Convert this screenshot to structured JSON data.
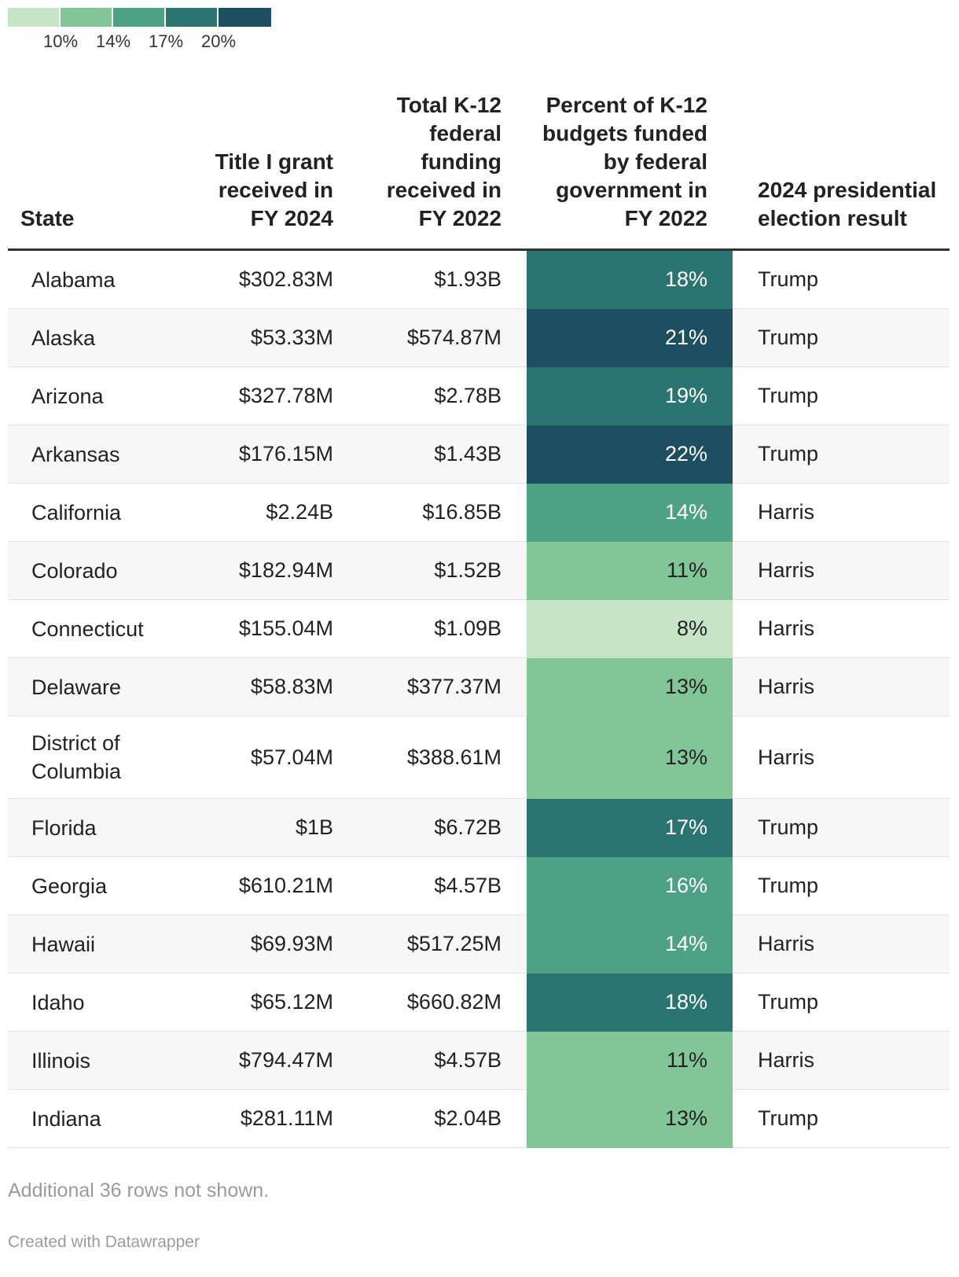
{
  "legend": {
    "colors": [
      "#c5e5c6",
      "#82c698",
      "#4da285",
      "#2b7571",
      "#1e4f60"
    ],
    "ticks": [
      "10%",
      "14%",
      "17%",
      "20%"
    ]
  },
  "table": {
    "headers": {
      "state": "State",
      "title1": "Title I grant received in FY 2024",
      "total": "Total K-12 federal funding received in FY 2022",
      "percent": "Percent of K-12 budgets funded by federal government in FY 2022",
      "result": "2024 presidential election result"
    },
    "rows": [
      {
        "state": "Alabama",
        "title1": "$302.83M",
        "total": "$1.93B",
        "percent": "18%",
        "pct_value": 18,
        "result": "Trump"
      },
      {
        "state": "Alaska",
        "title1": "$53.33M",
        "total": "$574.87M",
        "percent": "21%",
        "pct_value": 21,
        "result": "Trump"
      },
      {
        "state": "Arizona",
        "title1": "$327.78M",
        "total": "$2.78B",
        "percent": "19%",
        "pct_value": 19,
        "result": "Trump"
      },
      {
        "state": "Arkansas",
        "title1": "$176.15M",
        "total": "$1.43B",
        "percent": "22%",
        "pct_value": 22,
        "result": "Trump"
      },
      {
        "state": "California",
        "title1": "$2.24B",
        "total": "$16.85B",
        "percent": "14%",
        "pct_value": 14,
        "result": "Harris"
      },
      {
        "state": "Colorado",
        "title1": "$182.94M",
        "total": "$1.52B",
        "percent": "11%",
        "pct_value": 11,
        "result": "Harris"
      },
      {
        "state": "Connecticut",
        "title1": "$155.04M",
        "total": "$1.09B",
        "percent": "8%",
        "pct_value": 8,
        "result": "Harris"
      },
      {
        "state": "Delaware",
        "title1": "$58.83M",
        "total": "$377.37M",
        "percent": "13%",
        "pct_value": 13,
        "result": "Harris"
      },
      {
        "state": "District of Columbia",
        "title1": "$57.04M",
        "total": "$388.61M",
        "percent": "13%",
        "pct_value": 13,
        "result": "Harris"
      },
      {
        "state": "Florida",
        "title1": "$1B",
        "total": "$6.72B",
        "percent": "17%",
        "pct_value": 17,
        "result": "Trump"
      },
      {
        "state": "Georgia",
        "title1": "$610.21M",
        "total": "$4.57B",
        "percent": "16%",
        "pct_value": 16,
        "result": "Trump"
      },
      {
        "state": "Hawaii",
        "title1": "$69.93M",
        "total": "$517.25M",
        "percent": "14%",
        "pct_value": 14,
        "result": "Harris"
      },
      {
        "state": "Idaho",
        "title1": "$65.12M",
        "total": "$660.82M",
        "percent": "18%",
        "pct_value": 18,
        "result": "Trump"
      },
      {
        "state": "Illinois",
        "title1": "$794.47M",
        "total": "$4.57B",
        "percent": "11%",
        "pct_value": 11,
        "result": "Harris"
      },
      {
        "state": "Indiana",
        "title1": "$281.11M",
        "total": "$2.04B",
        "percent": "13%",
        "pct_value": 13,
        "result": "Trump"
      }
    ]
  },
  "chart_data": {
    "type": "table",
    "columns": [
      "State",
      "Title I grant received in FY 2024",
      "Total K-12 federal funding received in FY 2022",
      "Percent of K-12 budgets funded by federal government in FY 2022",
      "2024 presidential election result"
    ],
    "color_scale": {
      "ticks": [
        10,
        14,
        17,
        20
      ],
      "colors": [
        "#c5e5c6",
        "#82c698",
        "#4da285",
        "#2b7571",
        "#1e4f60"
      ]
    },
    "rows": [
      [
        "Alabama",
        "$302.83M",
        "$1.93B",
        18,
        "Trump"
      ],
      [
        "Alaska",
        "$53.33M",
        "$574.87M",
        21,
        "Trump"
      ],
      [
        "Arizona",
        "$327.78M",
        "$2.78B",
        19,
        "Trump"
      ],
      [
        "Arkansas",
        "$176.15M",
        "$1.43B",
        22,
        "Trump"
      ],
      [
        "California",
        "$2.24B",
        "$16.85B",
        14,
        "Harris"
      ],
      [
        "Colorado",
        "$182.94M",
        "$1.52B",
        11,
        "Harris"
      ],
      [
        "Connecticut",
        "$155.04M",
        "$1.09B",
        8,
        "Harris"
      ],
      [
        "Delaware",
        "$58.83M",
        "$377.37M",
        13,
        "Harris"
      ],
      [
        "District of Columbia",
        "$57.04M",
        "$388.61M",
        13,
        "Harris"
      ],
      [
        "Florida",
        "$1B",
        "$6.72B",
        17,
        "Trump"
      ],
      [
        "Georgia",
        "$610.21M",
        "$4.57B",
        16,
        "Trump"
      ],
      [
        "Hawaii",
        "$69.93M",
        "$517.25M",
        14,
        "Harris"
      ],
      [
        "Idaho",
        "$65.12M",
        "$660.82M",
        18,
        "Trump"
      ],
      [
        "Illinois",
        "$794.47M",
        "$4.57B",
        11,
        "Harris"
      ],
      [
        "Indiana",
        "$281.11M",
        "$2.04B",
        13,
        "Trump"
      ]
    ]
  },
  "footer": {
    "note": "Additional 36 rows not shown.",
    "credit": "Created with Datawrapper"
  }
}
